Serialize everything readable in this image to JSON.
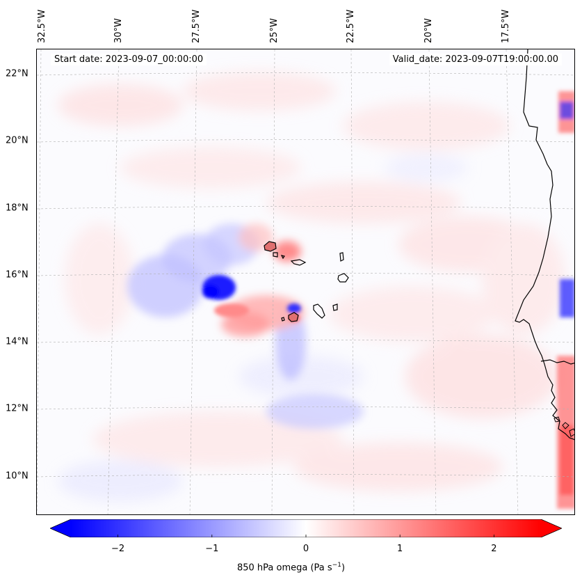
{
  "map": {
    "start_date": "Start date: 2023-09-07_00:00:00",
    "valid_date": "Valid_date: 2023-09-07T19:00:00.00",
    "variable": "850 hPa omega",
    "units": "Pa s",
    "units_exponent": "−1",
    "longitude_labels": [
      "32.5°W",
      "30°W",
      "27.5°W",
      "25°W",
      "22.5°W",
      "20°W",
      "17.5°W"
    ],
    "latitude_labels": [
      "22°N",
      "20°N",
      "18°N",
      "16°N",
      "14°N",
      "12°N",
      "10°N"
    ]
  },
  "colorbar": {
    "min": -2.5,
    "max": 2.5,
    "ticks": [
      "−2",
      "−1",
      "0",
      "1",
      "2"
    ],
    "tick_values": [
      -2,
      -1,
      0,
      1,
      2
    ],
    "extend": "both",
    "colors": {
      "negative": "#0000ff",
      "neutral": "#ffffff",
      "positive": "#ff0000"
    }
  },
  "features": {
    "coastline_color": "#000000",
    "gridline_color": "#b0b0b0",
    "islands": [
      "Santo Antão",
      "São Vicente",
      "Santa Luzia",
      "São Nicolau",
      "Sal",
      "Boa Vista",
      "Maio",
      "Santiago",
      "Fogo",
      "Brava"
    ]
  }
}
